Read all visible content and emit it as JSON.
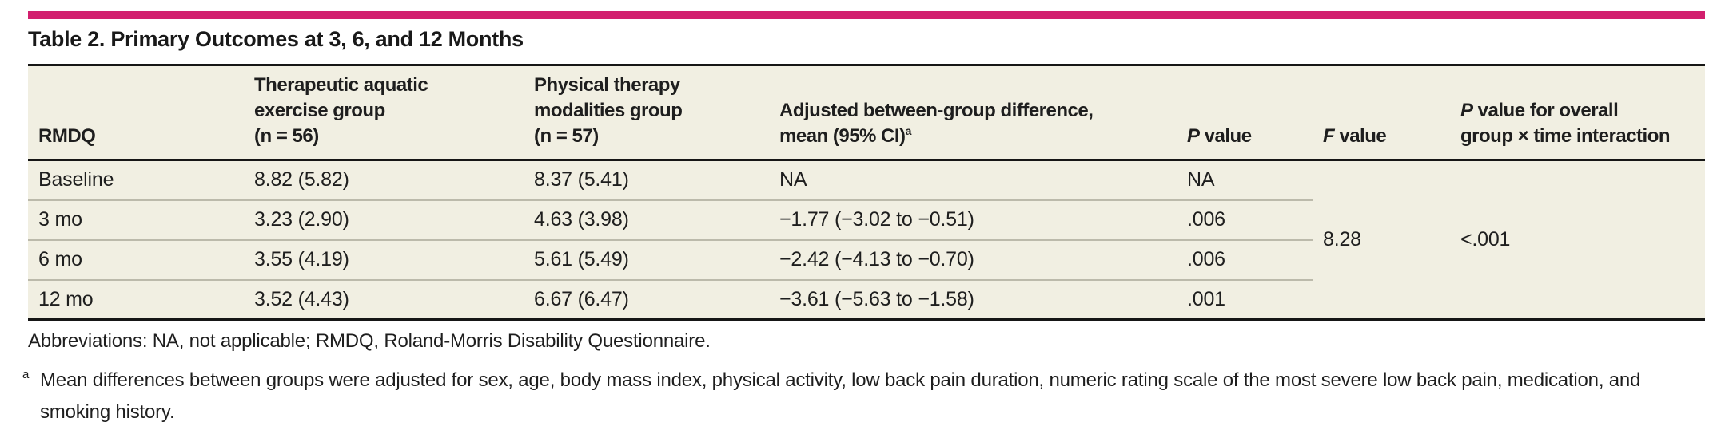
{
  "colors": {
    "accent": "#d21f6e",
    "table_background": "#f1efe2",
    "heavy_rule": "#161616",
    "light_rule": "#bcbaab",
    "text": "#1e1e1e"
  },
  "title": "Table 2. Primary Outcomes at 3, 6, and 12 Months",
  "table": {
    "header": {
      "rmdq": "RMDQ",
      "aquatic_l1": "Therapeutic aquatic",
      "aquatic_l2": "exercise group",
      "aquatic_l3": "(n = 56)",
      "physical_l1": "Physical therapy",
      "physical_l2": "modalities group",
      "physical_l3": "(n = 57)",
      "diff_l1": "Adjusted between-group difference,",
      "diff_l2": "mean (95% CI)",
      "diff_footnote_marker": "a",
      "p_label_italic": "P",
      "p_label_rest": " value",
      "f_label_italic": "F",
      "f_label_rest": " value",
      "interaction_l1_italic": "P",
      "interaction_l1_rest": " value for overall",
      "interaction_l2": "group × time interaction"
    },
    "rows": [
      {
        "label": "Baseline",
        "aquatic": "8.82 (5.82)",
        "physical": "8.37 (5.41)",
        "difference": "NA",
        "p_value": "NA"
      },
      {
        "label": "3 mo",
        "aquatic": "3.23 (2.90)",
        "physical": "4.63 (3.98)",
        "difference": "−1.77 (−3.02 to −0.51)",
        "p_value": ".006"
      },
      {
        "label": "6 mo",
        "aquatic": "3.55 (4.19)",
        "physical": "5.61 (5.49)",
        "difference": "−2.42 (−4.13 to −0.70)",
        "p_value": ".006"
      },
      {
        "label": "12 mo",
        "aquatic": "3.52 (4.43)",
        "physical": "6.67 (6.47)",
        "difference": "−3.61 (−5.63 to −1.58)",
        "p_value": ".001"
      }
    ],
    "f_value": "8.28",
    "interaction_p_value": "<.001"
  },
  "footnotes": {
    "abbreviations": "Abbreviations: NA, not applicable; RMDQ, Roland-Morris Disability Questionnaire.",
    "marker_a": "a",
    "note_a": "Mean differences between groups were adjusted for sex, age, body mass index, physical activity, low back pain duration, numeric rating scale of the most severe low back pain, medication, and smoking history."
  }
}
